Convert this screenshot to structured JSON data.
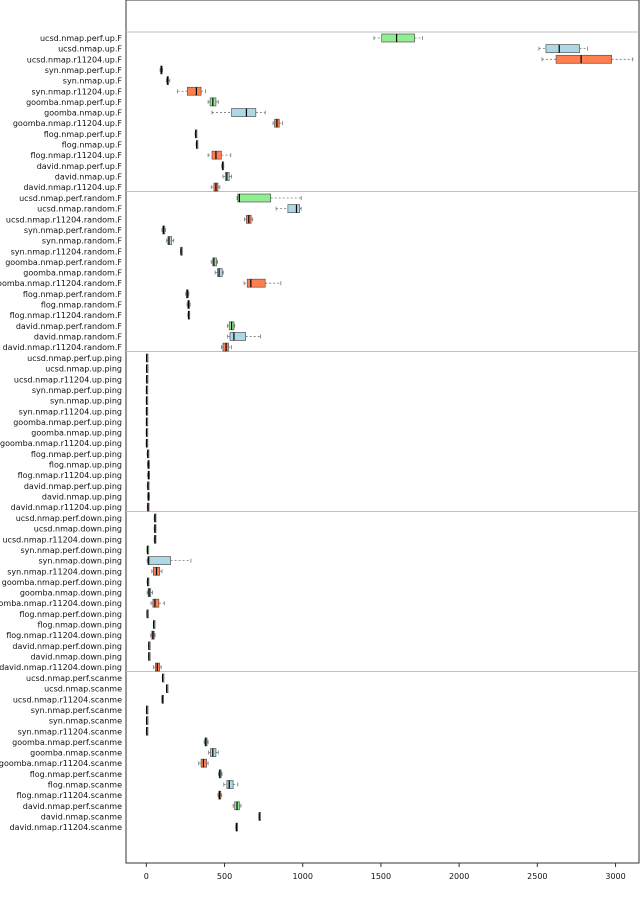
{
  "chart_data": {
    "type": "boxplot",
    "orientation": "horizontal",
    "title": "",
    "xlabel": "",
    "ylabel": "",
    "xlim": [
      -130,
      3150
    ],
    "xticks": [
      0,
      500,
      1000,
      1500,
      2000,
      2500,
      3000
    ],
    "grid": false,
    "legend": "none",
    "colors": {
      "perf": "#90ee90",
      "up": "#add8e6",
      "r11204": "#ff7f50",
      "divider": "#c0c0c0",
      "axis": "#333333",
      "median": "#000000",
      "whisker": "#777777"
    },
    "groups": [
      {
        "name": "up.F",
        "rows": [
          {
            "label": "ucsd.nmap.perf.up.F",
            "kind": "perf",
            "min": 1455,
            "q1": 1505,
            "median": 1600,
            "q3": 1715,
            "max": 1765
          },
          {
            "label": "ucsd.nmap.up.F",
            "kind": "up",
            "min": 2510,
            "q1": 2555,
            "median": 2640,
            "q3": 2770,
            "max": 2820
          },
          {
            "label": "ucsd.nmap.r11204.up.F",
            "kind": "r11204",
            "min": 2530,
            "q1": 2620,
            "median": 2780,
            "q3": 2975,
            "max": 3110
          },
          {
            "label": "syn.nmap.perf.up.F",
            "kind": "perf",
            "min": 88,
            "q1": 92,
            "median": 96,
            "q3": 100,
            "max": 104
          },
          {
            "label": "syn.nmap.up.F",
            "kind": "up",
            "min": 128,
            "q1": 132,
            "median": 136,
            "q3": 142,
            "max": 150
          },
          {
            "label": "syn.nmap.r11204.up.F",
            "kind": "r11204",
            "min": 200,
            "q1": 262,
            "median": 320,
            "q3": 350,
            "max": 378
          },
          {
            "label": "goomba.nmap.perf.up.F",
            "kind": "perf",
            "min": 395,
            "q1": 408,
            "median": 425,
            "q3": 445,
            "max": 460
          },
          {
            "label": "goomba.nmap.up.F",
            "kind": "up",
            "min": 420,
            "q1": 545,
            "median": 640,
            "q3": 700,
            "max": 760
          },
          {
            "label": "goomba.nmap.r11204.up.F",
            "kind": "r11204",
            "min": 810,
            "q1": 820,
            "median": 835,
            "q3": 850,
            "max": 870
          },
          {
            "label": "flog.nmap.perf.up.F",
            "kind": "perf",
            "min": 312,
            "q1": 314,
            "median": 316,
            "q3": 318,
            "max": 320
          },
          {
            "label": "flog.nmap.up.F",
            "kind": "up",
            "min": 318,
            "q1": 320,
            "median": 322,
            "q3": 325,
            "max": 328
          },
          {
            "label": "flog.nmap.r11204.up.F",
            "kind": "r11204",
            "min": 395,
            "q1": 420,
            "median": 445,
            "q3": 480,
            "max": 540
          },
          {
            "label": "david.nmap.perf.up.F",
            "kind": "perf",
            "min": 482,
            "q1": 485,
            "median": 488,
            "q3": 492,
            "max": 495
          },
          {
            "label": "david.nmap.up.F",
            "kind": "up",
            "min": 490,
            "q1": 505,
            "median": 515,
            "q3": 530,
            "max": 545
          },
          {
            "label": "david.nmap.r11204.up.F",
            "kind": "r11204",
            "min": 415,
            "q1": 432,
            "median": 445,
            "q3": 458,
            "max": 470
          }
        ]
      },
      {
        "name": "random.F",
        "rows": [
          {
            "label": "ucsd.nmap.perf.random.F",
            "kind": "perf",
            "min": 580,
            "q1": 585,
            "median": 595,
            "q3": 795,
            "max": 990
          },
          {
            "label": "ucsd.nmap.random.F",
            "kind": "up",
            "min": 830,
            "q1": 905,
            "median": 960,
            "q3": 980,
            "max": 990
          },
          {
            "label": "ucsd.nmap.r11204.random.F",
            "kind": "r11204",
            "min": 628,
            "q1": 640,
            "median": 655,
            "q3": 670,
            "max": 680
          },
          {
            "label": "syn.nmap.perf.random.F",
            "kind": "perf",
            "min": 100,
            "q1": 105,
            "median": 110,
            "q3": 118,
            "max": 122
          },
          {
            "label": "syn.nmap.random.F",
            "kind": "up",
            "min": 130,
            "q1": 138,
            "median": 145,
            "q3": 162,
            "max": 175
          },
          {
            "label": "syn.nmap.r11204.random.F",
            "kind": "r11204",
            "min": 218,
            "q1": 220,
            "median": 222,
            "q3": 224,
            "max": 226
          },
          {
            "label": "goomba.nmap.perf.random.F",
            "kind": "perf",
            "min": 415,
            "q1": 425,
            "median": 432,
            "q3": 448,
            "max": 455
          },
          {
            "label": "goomba.nmap.random.F",
            "kind": "up",
            "min": 440,
            "q1": 455,
            "median": 465,
            "q3": 485,
            "max": 492
          },
          {
            "label": "goomba.nmap.r11204.random.F",
            "kind": "r11204",
            "min": 625,
            "q1": 645,
            "median": 668,
            "q3": 760,
            "max": 860
          },
          {
            "label": "flog.nmap.perf.random.F",
            "kind": "perf",
            "min": 252,
            "q1": 256,
            "median": 262,
            "q3": 268,
            "max": 272
          },
          {
            "label": "flog.nmap.random.F",
            "kind": "up",
            "min": 260,
            "q1": 265,
            "median": 270,
            "q3": 276,
            "max": 280
          },
          {
            "label": "flog.nmap.r11204.random.F",
            "kind": "r11204",
            "min": 266,
            "q1": 268,
            "median": 270,
            "q3": 272,
            "max": 274
          },
          {
            "label": "david.nmap.perf.random.F",
            "kind": "perf",
            "min": 518,
            "q1": 530,
            "median": 545,
            "q3": 560,
            "max": 565
          },
          {
            "label": "david.nmap.random.F",
            "kind": "up",
            "min": 520,
            "q1": 535,
            "median": 560,
            "q3": 635,
            "max": 730
          },
          {
            "label": "david.nmap.r11204.random.F",
            "kind": "r11204",
            "min": 480,
            "q1": 490,
            "median": 510,
            "q3": 525,
            "max": 545
          }
        ]
      },
      {
        "name": "ping",
        "rows": [
          {
            "label": "ucsd.nmap.perf.up.ping",
            "kind": "perf",
            "min": 0,
            "q1": 1,
            "median": 2,
            "q3": 3,
            "max": 4
          },
          {
            "label": "ucsd.nmap.up.ping",
            "kind": "up",
            "min": 0,
            "q1": 1,
            "median": 2,
            "q3": 3,
            "max": 4
          },
          {
            "label": "ucsd.nmap.r11204.up.ping",
            "kind": "r11204",
            "min": 0,
            "q1": 1,
            "median": 2,
            "q3": 3,
            "max": 4
          },
          {
            "label": "syn.nmap.perf.up.ping",
            "kind": "perf",
            "min": 0,
            "q1": 0,
            "median": 1,
            "q3": 2,
            "max": 2
          },
          {
            "label": "syn.nmap.up.ping",
            "kind": "up",
            "min": 0,
            "q1": 0,
            "median": 1,
            "q3": 2,
            "max": 2
          },
          {
            "label": "syn.nmap.r11204.up.ping",
            "kind": "r11204",
            "min": 0,
            "q1": 0,
            "median": 1,
            "q3": 2,
            "max": 2
          },
          {
            "label": "goomba.nmap.perf.up.ping",
            "kind": "perf",
            "min": 0,
            "q1": 0,
            "median": 1,
            "q3": 2,
            "max": 2
          },
          {
            "label": "goomba.nmap.up.ping",
            "kind": "up",
            "min": 0,
            "q1": 0,
            "median": 1,
            "q3": 2,
            "max": 2
          },
          {
            "label": "goomba.nmap.r11204.up.ping",
            "kind": "r11204",
            "min": 0,
            "q1": 0,
            "median": 1,
            "q3": 2,
            "max": 2
          },
          {
            "label": "flog.nmap.perf.up.ping",
            "kind": "perf",
            "min": 5,
            "q1": 7,
            "median": 9,
            "q3": 11,
            "max": 13
          },
          {
            "label": "flog.nmap.up.ping",
            "kind": "up",
            "min": 7,
            "q1": 10,
            "median": 13,
            "q3": 16,
            "max": 19
          },
          {
            "label": "flog.nmap.r11204.up.ping",
            "kind": "r11204",
            "min": 8,
            "q1": 11,
            "median": 14,
            "q3": 17,
            "max": 20
          },
          {
            "label": "david.nmap.perf.up.ping",
            "kind": "perf",
            "min": 6,
            "q1": 8,
            "median": 10,
            "q3": 12,
            "max": 14
          },
          {
            "label": "david.nmap.up.ping",
            "kind": "up",
            "min": 8,
            "q1": 10,
            "median": 13,
            "q3": 17,
            "max": 20
          },
          {
            "label": "david.nmap.r11204.up.ping",
            "kind": "r11204",
            "min": 6,
            "q1": 8,
            "median": 10,
            "q3": 12,
            "max": 14
          }
        ]
      },
      {
        "name": "down.ping",
        "rows": [
          {
            "label": "ucsd.nmap.perf.down.ping",
            "kind": "perf",
            "min": 50,
            "q1": 52,
            "median": 55,
            "q3": 57,
            "max": 59
          },
          {
            "label": "ucsd.nmap.down.ping",
            "kind": "up",
            "min": 50,
            "q1": 52,
            "median": 55,
            "q3": 57,
            "max": 59
          },
          {
            "label": "ucsd.nmap.r11204.down.ping",
            "kind": "r11204",
            "min": 50,
            "q1": 52,
            "median": 55,
            "q3": 57,
            "max": 59
          },
          {
            "label": "syn.nmap.perf.down.ping",
            "kind": "perf",
            "min": 5,
            "q1": 6,
            "median": 7,
            "q3": 8,
            "max": 9
          },
          {
            "label": "syn.nmap.down.ping",
            "kind": "up",
            "min": 5,
            "q1": 10,
            "median": 15,
            "q3": 155,
            "max": 285
          },
          {
            "label": "syn.nmap.r11204.down.ping",
            "kind": "r11204",
            "min": 35,
            "q1": 45,
            "median": 65,
            "q3": 85,
            "max": 100
          },
          {
            "label": "goomba.nmap.perf.down.ping",
            "kind": "perf",
            "min": 5,
            "q1": 7,
            "median": 9,
            "q3": 11,
            "max": 13
          },
          {
            "label": "goomba.nmap.down.ping",
            "kind": "up",
            "min": 5,
            "q1": 12,
            "median": 18,
            "q3": 28,
            "max": 40
          },
          {
            "label": "goomba.nmap.r11204.down.ping",
            "kind": "r11204",
            "min": 30,
            "q1": 42,
            "median": 55,
            "q3": 80,
            "max": 115
          },
          {
            "label": "flog.nmap.perf.down.ping",
            "kind": "perf",
            "min": 3,
            "q1": 4,
            "median": 5,
            "q3": 6,
            "max": 7
          },
          {
            "label": "flog.nmap.down.ping",
            "kind": "up",
            "min": 45,
            "q1": 46,
            "median": 47,
            "q3": 49,
            "max": 50
          },
          {
            "label": "flog.nmap.r11204.down.ping",
            "kind": "r11204",
            "min": 28,
            "q1": 35,
            "median": 42,
            "q3": 50,
            "max": 56
          },
          {
            "label": "david.nmap.perf.down.ping",
            "kind": "perf",
            "min": 14,
            "q1": 15,
            "median": 16,
            "q3": 17,
            "max": 18
          },
          {
            "label": "david.nmap.down.ping",
            "kind": "up",
            "min": 14,
            "q1": 15,
            "median": 16,
            "q3": 17,
            "max": 18
          },
          {
            "label": "david.nmap.r11204.down.ping",
            "kind": "r11204",
            "min": 45,
            "q1": 58,
            "median": 70,
            "q3": 85,
            "max": 95
          }
        ]
      },
      {
        "name": "scanme",
        "rows": [
          {
            "label": "ucsd.nmap.perf.scanme",
            "kind": "perf",
            "min": 102,
            "q1": 103,
            "median": 104,
            "q3": 105,
            "max": 106
          },
          {
            "label": "ucsd.nmap.scanme",
            "kind": "up",
            "min": 128,
            "q1": 129,
            "median": 130,
            "q3": 131,
            "max": 132
          },
          {
            "label": "ucsd.nmap.r11204.scanme",
            "kind": "r11204",
            "min": 100,
            "q1": 101,
            "median": 102,
            "q3": 103,
            "max": 104
          },
          {
            "label": "syn.nmap.perf.scanme",
            "kind": "perf",
            "min": 0,
            "q1": 1,
            "median": 2,
            "q3": 3,
            "max": 4
          },
          {
            "label": "syn.nmap.scanme",
            "kind": "up",
            "min": 0,
            "q1": 1,
            "median": 2,
            "q3": 3,
            "max": 4
          },
          {
            "label": "syn.nmap.r11204.scanme",
            "kind": "r11204",
            "min": 0,
            "q1": 1,
            "median": 2,
            "q3": 3,
            "max": 4
          },
          {
            "label": "goomba.nmap.perf.scanme",
            "kind": "perf",
            "min": 370,
            "q1": 375,
            "median": 380,
            "q3": 388,
            "max": 395
          },
          {
            "label": "goomba.nmap.scanme",
            "kind": "up",
            "min": 398,
            "q1": 410,
            "median": 425,
            "q3": 445,
            "max": 460
          },
          {
            "label": "goomba.nmap.r11204.scanme",
            "kind": "r11204",
            "min": 335,
            "q1": 350,
            "median": 365,
            "q3": 385,
            "max": 395
          },
          {
            "label": "flog.nmap.perf.scanme",
            "kind": "perf",
            "min": 462,
            "q1": 466,
            "median": 470,
            "q3": 478,
            "max": 484
          },
          {
            "label": "flog.nmap.scanme",
            "kind": "up",
            "min": 495,
            "q1": 515,
            "median": 530,
            "q3": 555,
            "max": 585
          },
          {
            "label": "flog.nmap.r11204.scanme",
            "kind": "r11204",
            "min": 458,
            "q1": 463,
            "median": 468,
            "q3": 476,
            "max": 482
          },
          {
            "label": "david.nmap.perf.scanme",
            "kind": "perf",
            "min": 555,
            "q1": 565,
            "median": 580,
            "q3": 595,
            "max": 605
          },
          {
            "label": "david.nmap.scanme",
            "kind": "up",
            "min": 720,
            "q1": 721,
            "median": 722,
            "q3": 724,
            "max": 725
          },
          {
            "label": "david.nmap.r11204.scanme",
            "kind": "r11204",
            "min": 572,
            "q1": 574,
            "median": 576,
            "q3": 578,
            "max": 580
          }
        ]
      }
    ]
  }
}
